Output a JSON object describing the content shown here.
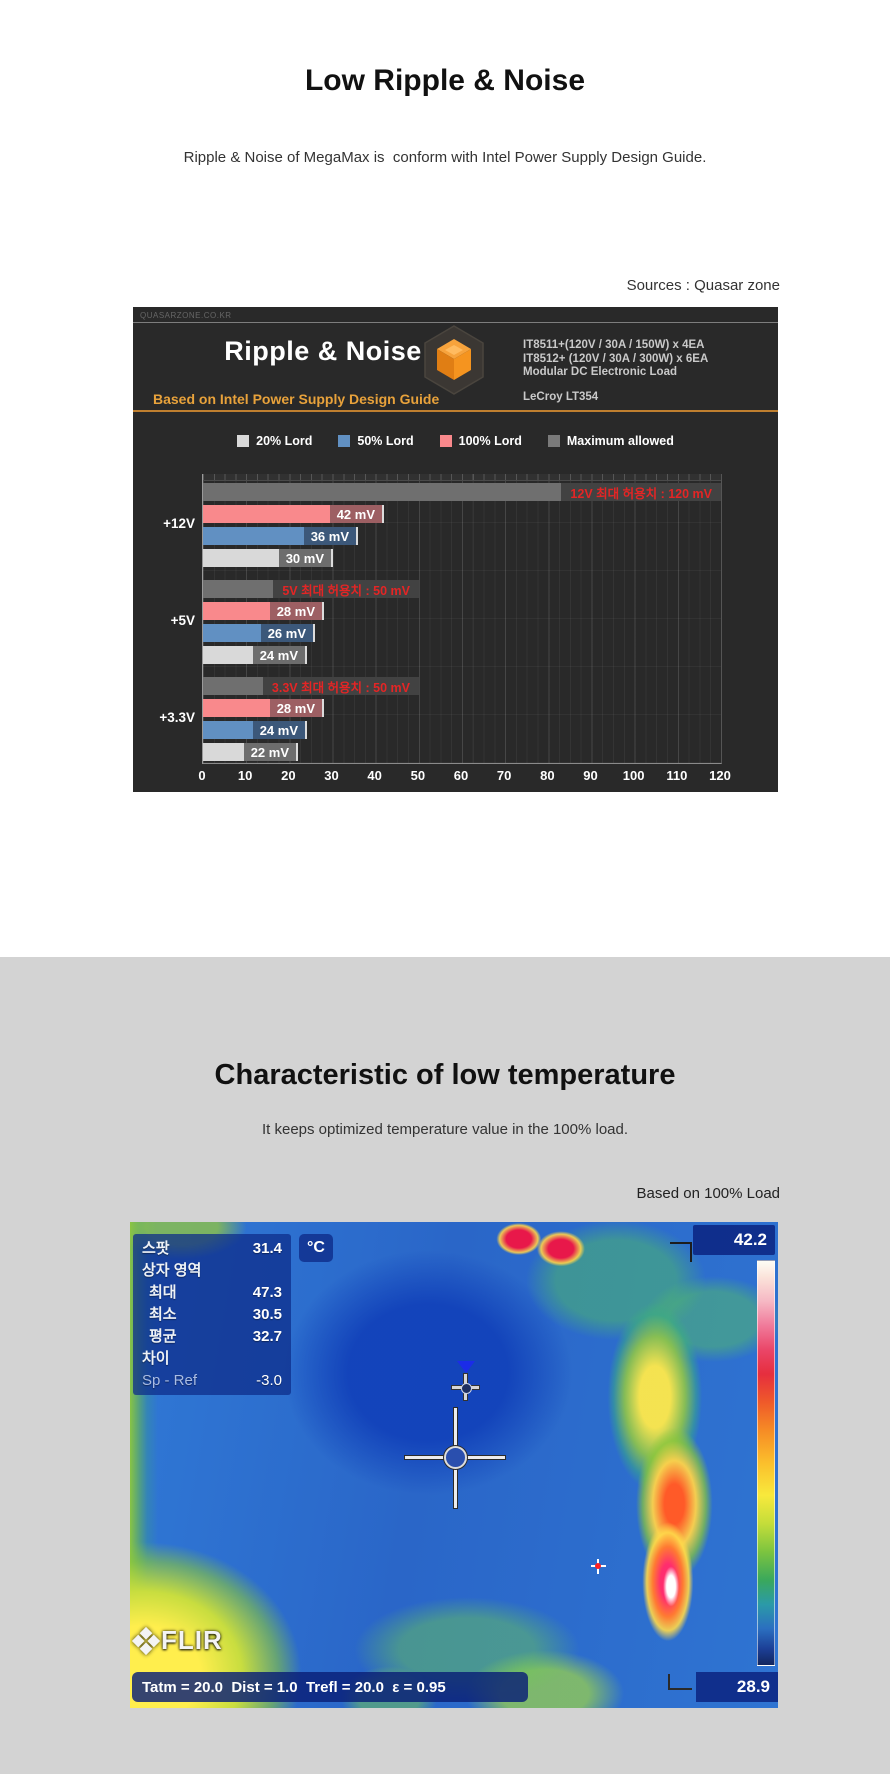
{
  "section1": {
    "title": "Low Ripple & Noise",
    "subtitle": "Ripple & Noise of MegaMax is  conform with Intel Power Supply Design Guide.",
    "source_note": "Sources : Quasar zone",
    "chart": {
      "watermark": "QUASARZONE.CO.KR",
      "title": "Ripple & Noise",
      "subtitle": "Based on Intel Power Supply Design Guide",
      "equipment": [
        "IT8511+(120V / 30A / 150W) x 4EA",
        "IT8512+ (120V / 30A / 300W) x 6EA",
        "Modular DC Electronic Load"
      ],
      "scope": "LeCroy LT354",
      "accent_color": "#bf7f2f",
      "legend": [
        {
          "label": "20% Lord",
          "color": "#d9d9d9"
        },
        {
          "label": "50% Lord",
          "color": "#6190c2"
        },
        {
          "label": "100% Lord",
          "color": "#f9898c"
        },
        {
          "label": "Maximum allowed",
          "color": "#7a7a7a"
        }
      ]
    }
  },
  "chart_data": {
    "type": "bar",
    "orientation": "horizontal",
    "title": "Ripple & Noise",
    "unit": "mV",
    "xlim": [
      0,
      120
    ],
    "xticks": [
      0,
      10,
      20,
      30,
      40,
      50,
      60,
      70,
      80,
      90,
      100,
      110,
      120
    ],
    "categories": [
      "+12V",
      "+5V",
      "+3.3V"
    ],
    "grid": true,
    "legend_position": "top",
    "groups": [
      {
        "category": "+12V",
        "bars": [
          {
            "series": "Maximum allowed",
            "value": 120,
            "label": "12V 최대 허용치 : 120 mV",
            "style": "max"
          },
          {
            "series": "100% Lord",
            "value": 42,
            "label": "42 mV",
            "style": "s100"
          },
          {
            "series": "50% Lord",
            "value": 36,
            "label": "36 mV",
            "style": "s50"
          },
          {
            "series": "20% Lord",
            "value": 30,
            "label": "30 mV",
            "style": "s20"
          }
        ]
      },
      {
        "category": "+5V",
        "bars": [
          {
            "series": "Maximum allowed",
            "value": 50,
            "label": "5V 최대 허용치 : 50 mV",
            "style": "max"
          },
          {
            "series": "100% Lord",
            "value": 28,
            "label": "28 mV",
            "style": "s100"
          },
          {
            "series": "50% Lord",
            "value": 26,
            "label": "26 mV",
            "style": "s50"
          },
          {
            "series": "20% Lord",
            "value": 24,
            "label": "24 mV",
            "style": "s20"
          }
        ]
      },
      {
        "category": "+3.3V",
        "bars": [
          {
            "series": "Maximum allowed",
            "value": 50,
            "label": "3.3V 최대 허용치 : 50 mV",
            "style": "max"
          },
          {
            "series": "100% Lord",
            "value": 28,
            "label": "28 mV",
            "style": "s100"
          },
          {
            "series": "50% Lord",
            "value": 24,
            "label": "24 mV",
            "style": "s50"
          },
          {
            "series": "20% Lord",
            "value": 22,
            "label": "22 mV",
            "style": "s20"
          }
        ]
      }
    ]
  },
  "section2": {
    "title": "Characteristic of low temperature",
    "subtitle": "It keeps optimized temperature value in the 100% load.",
    "load_note": "Based on 100% Load",
    "flir": {
      "unit_badge": "°C",
      "scale_max": "42.2",
      "scale_min": "28.9",
      "bottom_bar": "Tatm = 20.0  Dist = 1.0  Trefl = 20.0  ε = 0.95",
      "logo": "FLIR",
      "readout": [
        {
          "label": "스팟",
          "value": "31.4",
          "indent": false,
          "dim": false
        },
        {
          "label": "상자 영역",
          "value": "",
          "indent": false,
          "dim": false
        },
        {
          "label": "최대",
          "value": "47.3",
          "indent": true,
          "dim": false
        },
        {
          "label": "최소",
          "value": "30.5",
          "indent": true,
          "dim": false
        },
        {
          "label": "평균",
          "value": "32.7",
          "indent": true,
          "dim": false
        },
        {
          "label": "차이",
          "value": "",
          "indent": false,
          "dim": false
        },
        {
          "label": "Sp - Ref",
          "value": "-3.0",
          "indent": false,
          "dim": true
        }
      ]
    }
  }
}
